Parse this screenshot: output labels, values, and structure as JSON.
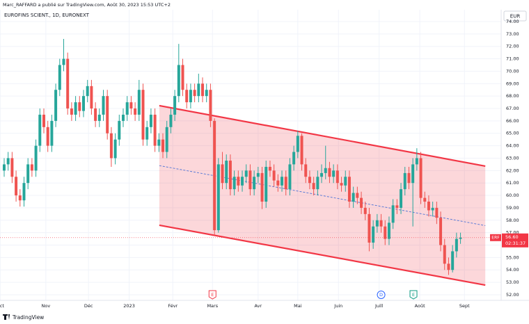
{
  "header": "Marc_RAFFARD a publié sur TradingView.com, Août 30, 2023 15:53 UTC+2",
  "footer_logo": "TradingView",
  "chart_data": {
    "type": "candlestick",
    "title": "EUROFINS SCIENT., 1D, EURONEXT",
    "currency": "EUR",
    "x": [
      0,
      2,
      4,
      6,
      8,
      10,
      12,
      14,
      16,
      18,
      20,
      22,
      24,
      26,
      28,
      30,
      32,
      34,
      36,
      38,
      40,
      42,
      44,
      46,
      48,
      50,
      52,
      54,
      56,
      58,
      60,
      62,
      64,
      66,
      68,
      70,
      72,
      74,
      76,
      78,
      80,
      82,
      84,
      86,
      88,
      90,
      92,
      94,
      96,
      98,
      100,
      102,
      104,
      106,
      108,
      110,
      112,
      114,
      116,
      118,
      120,
      122,
      124,
      126,
      128,
      130,
      132,
      134,
      136,
      138,
      140,
      142,
      144,
      146,
      148,
      150,
      152,
      154,
      156,
      158,
      160,
      162,
      164,
      166,
      168,
      170,
      172,
      174,
      176,
      178,
      180,
      182,
      184,
      186,
      188,
      190,
      192,
      194,
      196,
      198,
      200,
      202,
      204,
      206,
      208,
      210,
      212,
      214,
      216,
      218,
      220,
      222,
      224,
      226,
      228,
      230
    ],
    "open": [
      62.0,
      62.5,
      63.0,
      61.5,
      60.0,
      59.6,
      61.0,
      62.5,
      62.0,
      64.0,
      66.5,
      65.5,
      64.0,
      66.0,
      68.5,
      70.5,
      71.0,
      67.0,
      66.5,
      67.5,
      66.8,
      68.0,
      68.8,
      67.0,
      66.0,
      66.5,
      68.0,
      65.0,
      63.0,
      64.5,
      66.0,
      66.5,
      67.5,
      67.0,
      66.5,
      68.5,
      64.5,
      65.5,
      66.5,
      64.0,
      64.5,
      63.5,
      65.5,
      66.5,
      68.0,
      70.5,
      68.5,
      67.5,
      68.5,
      68.0,
      69.0,
      68.0,
      68.5,
      66.0,
      57.2,
      62.5,
      61.0,
      62.8,
      60.5,
      61.5,
      60.8,
      61.5,
      62.0,
      60.5,
      61.5,
      61.8,
      59.5,
      62.3,
      62.0,
      61.2,
      60.8,
      61.5,
      60.5,
      62.5,
      63.5,
      64.8,
      62.5,
      61.5,
      61.0,
      60.5,
      61.5,
      61.8,
      62.2,
      61.5,
      62.0,
      61.0,
      60.8,
      61.5,
      59.5,
      60.2,
      59.8,
      59.0,
      58.5,
      56.2,
      57.5,
      58.0,
      57.5,
      56.5,
      57.8,
      59.2,
      59.0,
      60.5,
      61.8,
      61.0,
      62.5,
      63.0,
      59.8,
      59.5,
      58.8,
      59.0,
      58.2,
      56.0,
      54.5,
      54.0,
      55.5,
      56.5
    ],
    "high": [
      63.0,
      63.5,
      63.5,
      62.0,
      60.5,
      61.5,
      63.0,
      63.0,
      64.5,
      67.0,
      67.0,
      66.0,
      66.5,
      69.0,
      71.0,
      72.6,
      71.5,
      67.5,
      68.0,
      68.0,
      68.5,
      69.3,
      69.3,
      67.5,
      67.0,
      68.5,
      68.5,
      65.5,
      65.0,
      66.5,
      67.0,
      68.0,
      68.0,
      67.5,
      69.3,
      69.0,
      66.0,
      67.0,
      67.0,
      65.0,
      65.0,
      66.0,
      67.0,
      68.5,
      72.2,
      71.0,
      69.0,
      69.0,
      69.0,
      69.8,
      69.5,
      69.0,
      69.0,
      66.2,
      63.0,
      63.5,
      63.3,
      63.3,
      62.0,
      62.0,
      62.0,
      62.5,
      62.5,
      62.0,
      62.3,
      62.3,
      62.8,
      62.8,
      62.5,
      61.7,
      62.0,
      62.0,
      63.0,
      64.0,
      65.2,
      65.0,
      63.0,
      62.0,
      61.5,
      62.0,
      62.5,
      64.0,
      62.7,
      62.5,
      62.5,
      61.5,
      62.0,
      62.0,
      60.7,
      60.7,
      60.3,
      59.5,
      59.0,
      58.0,
      58.5,
      58.5,
      58.0,
      58.3,
      59.7,
      59.7,
      61.0,
      62.3,
      62.3,
      63.0,
      63.8,
      63.5,
      60.3,
      60.0,
      59.5,
      59.5,
      58.7,
      56.5,
      55.0,
      56.0,
      57.0,
      57.0
    ],
    "low": [
      61.5,
      62.0,
      61.0,
      59.5,
      59.1,
      59.1,
      60.5,
      61.5,
      61.5,
      63.5,
      65.0,
      63.5,
      63.5,
      65.5,
      68.0,
      70.0,
      66.5,
      66.0,
      66.0,
      66.3,
      66.3,
      67.5,
      66.5,
      65.5,
      65.5,
      66.0,
      64.5,
      62.3,
      62.5,
      64.0,
      65.5,
      66.0,
      66.5,
      66.0,
      66.0,
      64.0,
      64.0,
      65.0,
      63.5,
      63.5,
      63.0,
      63.0,
      65.0,
      66.0,
      67.5,
      68.0,
      67.0,
      67.0,
      67.5,
      67.5,
      67.5,
      67.5,
      65.5,
      56.8,
      57.0,
      60.5,
      60.5,
      60.0,
      60.0,
      60.3,
      60.3,
      61.0,
      60.0,
      60.0,
      61.0,
      58.9,
      59.0,
      61.5,
      60.7,
      60.3,
      60.3,
      60.0,
      60.0,
      62.0,
      63.0,
      62.0,
      61.0,
      60.5,
      60.0,
      60.0,
      61.0,
      61.3,
      61.0,
      61.0,
      60.5,
      60.3,
      60.3,
      59.0,
      59.0,
      59.3,
      58.5,
      58.0,
      55.5,
      55.7,
      57.0,
      57.0,
      56.0,
      56.0,
      57.3,
      58.5,
      58.5,
      60.0,
      60.5,
      57.5,
      62.0,
      59.3,
      59.0,
      58.3,
      58.3,
      57.7,
      55.5,
      54.0,
      53.6,
      53.8,
      55.0,
      56.1
    ],
    "close": [
      62.5,
      63.0,
      61.5,
      60.0,
      59.6,
      61.0,
      62.5,
      62.0,
      64.0,
      66.5,
      65.5,
      64.0,
      66.0,
      68.5,
      70.5,
      71.0,
      67.0,
      66.5,
      67.5,
      66.8,
      68.0,
      68.8,
      67.0,
      66.0,
      66.5,
      68.0,
      65.0,
      63.0,
      64.5,
      66.0,
      66.5,
      67.5,
      67.0,
      66.5,
      68.5,
      64.5,
      65.5,
      66.5,
      64.0,
      64.5,
      63.5,
      65.5,
      66.5,
      68.0,
      70.5,
      68.5,
      67.5,
      68.5,
      68.0,
      69.0,
      68.0,
      68.5,
      66.0,
      57.2,
      62.5,
      61.0,
      62.8,
      60.5,
      61.5,
      60.8,
      61.5,
      62.0,
      60.5,
      61.5,
      61.8,
      59.5,
      62.3,
      62.0,
      61.2,
      60.8,
      61.5,
      60.5,
      62.5,
      63.5,
      64.8,
      62.5,
      61.5,
      61.0,
      60.5,
      61.5,
      61.8,
      62.2,
      61.5,
      62.0,
      61.0,
      60.8,
      61.5,
      59.5,
      60.2,
      59.8,
      59.0,
      58.5,
      56.2,
      57.5,
      58.0,
      57.5,
      56.5,
      57.8,
      59.2,
      59.0,
      60.5,
      61.8,
      61.0,
      62.5,
      63.0,
      59.8,
      59.5,
      58.8,
      59.0,
      58.2,
      56.0,
      54.5,
      54.0,
      55.5,
      56.5,
      56.6
    ],
    "up_color": "#26a69a",
    "down_color": "#ef5350",
    "xlim": [
      -2.1,
      250.5
    ],
    "xticks": [
      {
        "value": -2,
        "label": "Oct"
      },
      {
        "value": 21,
        "label": "Nov"
      },
      {
        "value": 42.5,
        "label": "Déc"
      },
      {
        "value": 63,
        "label": "2023"
      },
      {
        "value": 85,
        "label": "Févr"
      },
      {
        "value": 105,
        "label": "Mars"
      },
      {
        "value": 128,
        "label": "Avr"
      },
      {
        "value": 148,
        "label": "Mai"
      },
      {
        "value": 168.5,
        "label": "Juin"
      },
      {
        "value": 189,
        "label": "Juill"
      },
      {
        "value": 209.5,
        "label": "Août"
      },
      {
        "value": 232,
        "label": "Sept"
      }
    ],
    "ylim": [
      51.55,
      74.95
    ],
    "yticks": [
      {
        "value": 52,
        "label": "52.00"
      },
      {
        "value": 53,
        "label": "53.00"
      },
      {
        "value": 54,
        "label": "54.00"
      },
      {
        "value": 55,
        "label": "55.00"
      },
      {
        "value": 56,
        "label": "56.00"
      },
      {
        "value": 57,
        "label": "57.00"
      },
      {
        "value": 58,
        "label": "58.00"
      },
      {
        "value": 59,
        "label": "59.00"
      },
      {
        "value": 60,
        "label": "60.00"
      },
      {
        "value": 61,
        "label": "61.00"
      },
      {
        "value": 62,
        "label": "62.00"
      },
      {
        "value": 63,
        "label": "63.00"
      },
      {
        "value": 64,
        "label": "64.00"
      },
      {
        "value": 65,
        "label": "65.00"
      },
      {
        "value": 66,
        "label": "66.00"
      },
      {
        "value": 67,
        "label": "67.00"
      },
      {
        "value": 68,
        "label": "68.00"
      },
      {
        "value": 69,
        "label": "69.00"
      },
      {
        "value": 70,
        "label": "70.00"
      },
      {
        "value": 71,
        "label": "71.00"
      },
      {
        "value": 72,
        "label": "72.00"
      },
      {
        "value": 73,
        "label": "73.00"
      },
      {
        "value": 74,
        "label": "74.00"
      }
    ],
    "grid": true,
    "channel": {
      "x": [
        78.2,
        242.5
      ],
      "upper": [
        67.23,
        62.36
      ],
      "middle": [
        62.4,
        57.57
      ],
      "lower": [
        57.6,
        52.78
      ],
      "line_color": "#f23645",
      "fill": "rgba(242,54,69,0.2)",
      "middle_color": "#5b7bd6"
    },
    "last_price": {
      "symbol": "ERF",
      "value": 56.6,
      "label": "56.60",
      "countdown": "02:31:37",
      "color": "#f23645"
    },
    "events": [
      {
        "label": "E",
        "x": 105,
        "color": "#f23645"
      },
      {
        "label": "D",
        "x": 190,
        "color": "#2962ff"
      },
      {
        "label": "E",
        "x": 206.3,
        "color": "#089981"
      }
    ]
  }
}
